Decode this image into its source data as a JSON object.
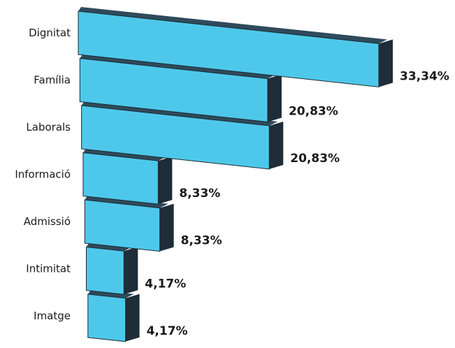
{
  "chart_data": {
    "type": "bar",
    "orientation": "horizontal",
    "style": "3d",
    "categories": [
      "Dignitat",
      "Família",
      "Laborals",
      "Informació",
      "Admissió",
      "Intimitat",
      "Imatge"
    ],
    "values": [
      33.34,
      20.83,
      20.83,
      8.33,
      8.33,
      4.17,
      4.17
    ],
    "value_labels": [
      "33,34%",
      "20,83%",
      "20,83%",
      "8,33%",
      "8,33%",
      "4,17%",
      "4,17%"
    ],
    "title": "",
    "xlabel": "",
    "ylabel": "",
    "xlim": [
      0,
      33.34
    ],
    "grid": false,
    "colors": {
      "front": "#4ec8ea",
      "side": "#1e2d38",
      "top": "#2f4a5c",
      "edge": "#1b2a33"
    }
  }
}
